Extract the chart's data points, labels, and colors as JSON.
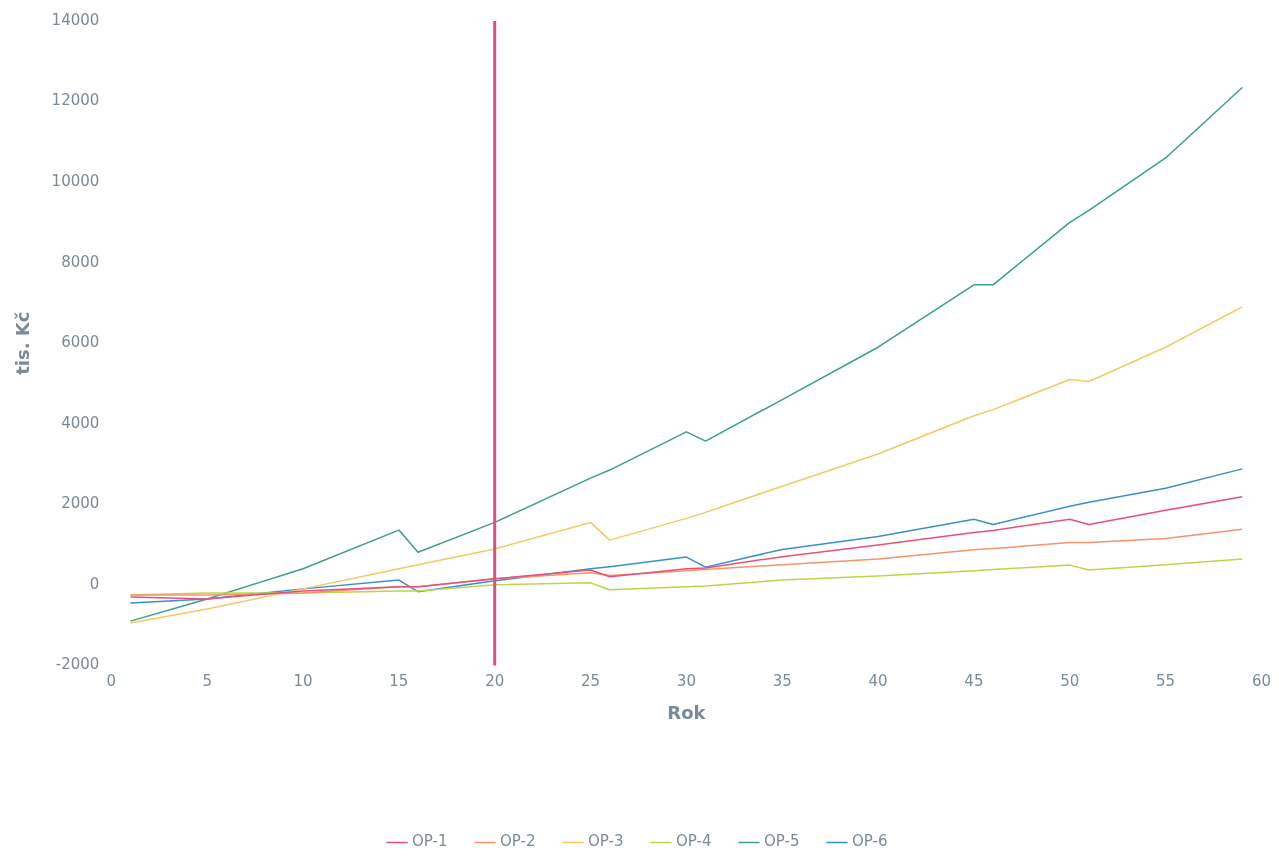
{
  "chart_data": {
    "type": "line",
    "xlabel": "Rok",
    "ylabel": "tis. Kč",
    "x": [
      1,
      5,
      10,
      15,
      16,
      20,
      25,
      26,
      30,
      31,
      35,
      40,
      45,
      46,
      50,
      51,
      55,
      59
    ],
    "series": [
      {
        "name": "OP-1",
        "color": "#e8507a",
        "values": [
          -300,
          -350,
          -150,
          -50,
          -50,
          150,
          370,
          200,
          400,
          420,
          700,
          990,
          1300,
          1350,
          1630,
          1500,
          1850,
          2190
        ]
      },
      {
        "name": "OP-2",
        "color": "#f5956a",
        "values": [
          -250,
          -250,
          -200,
          -50,
          -50,
          150,
          300,
          230,
          350,
          380,
          500,
          640,
          870,
          900,
          1050,
          1050,
          1150,
          1380
        ]
      },
      {
        "name": "OP-3",
        "color": "#f8c860",
        "values": [
          -950,
          -600,
          -100,
          400,
          500,
          890,
          1550,
          1110,
          1650,
          1800,
          2450,
          3250,
          4200,
          4350,
          5100,
          5050,
          5900,
          6900
        ]
      },
      {
        "name": "OP-4",
        "color": "#b5d94a",
        "values": [
          -250,
          -200,
          -200,
          -150,
          -150,
          0,
          50,
          -120,
          -50,
          -30,
          120,
          220,
          350,
          380,
          490,
          370,
          500,
          640
        ]
      },
      {
        "name": "OP-5",
        "color": "#3aa08a",
        "values": [
          -900,
          -350,
          400,
          1360,
          810,
          1550,
          2650,
          2850,
          3800,
          3570,
          4600,
          5900,
          7450,
          7450,
          9000,
          9300,
          10600,
          12350
        ]
      },
      {
        "name": "OP-6",
        "color": "#3a8fd0",
        "values": [
          -450,
          -350,
          -100,
          120,
          -170,
          100,
          400,
          450,
          690,
          440,
          880,
          1200,
          1630,
          1500,
          1950,
          2050,
          2400,
          2880
        ]
      }
    ],
    "xlim": [
      0,
      60
    ],
    "xticks": [
      0,
      5,
      10,
      15,
      20,
      25,
      30,
      35,
      40,
      45,
      50,
      55,
      60
    ],
    "ylim": [
      -2000,
      14000
    ],
    "yticks": [
      -2000,
      0,
      2000,
      4000,
      6000,
      8000,
      10000,
      12000,
      14000
    ],
    "ref_lines": [
      {
        "axis": "x",
        "value": 20,
        "color": "#e0507a"
      }
    ],
    "grid": false,
    "legend": "bottom",
    "marker": "none",
    "line_style": "solid"
  }
}
